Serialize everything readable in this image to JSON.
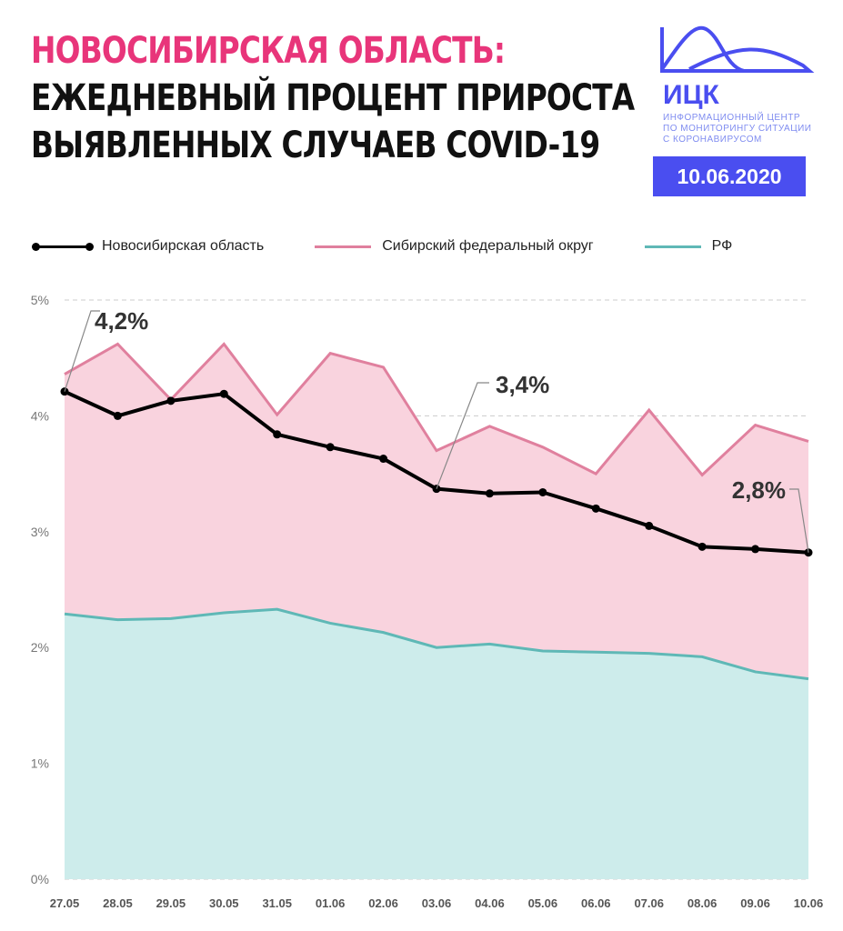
{
  "header": {
    "title_line1": "НОВОСИБИРСКАЯ ОБЛАСТЬ:",
    "title_line2": "ЕЖЕДНЕВНЫЙ ПРОЦЕНТ ПРИРОСТА",
    "title_line3": "ВЫЯВЛЕННЫХ СЛУЧАЕВ COVID-19",
    "logo_name": "ИЦК",
    "logo_sub1": "ИНФОРМАЦИОННЫЙ ЦЕНТР",
    "logo_sub2": "ПО МОНИТОРИНГУ СИТУАЦИИ",
    "logo_sub3": "С КОРОНАВИРУСОМ",
    "date": "10.06.2020"
  },
  "colors": {
    "title": "#e8357a",
    "brand": "#4a4ef0",
    "nso": "#000000",
    "sfo_line": "#e0809e",
    "sfo_fill": "#f9d3de",
    "rf_line": "#5fb8b6",
    "rf_fill": "#cdeceb"
  },
  "chart_data": {
    "type": "area",
    "categories": [
      "27.05",
      "28.05",
      "29.05",
      "30.05",
      "31.05",
      "01.06",
      "02.06",
      "03.06",
      "04.06",
      "05.06",
      "06.06",
      "07.06",
      "08.06",
      "09.06",
      "10.06"
    ],
    "ylim": [
      0,
      5
    ],
    "yticks": [
      "0%",
      "1%",
      "2%",
      "3%",
      "4%",
      "5%"
    ],
    "grid": true,
    "legend_position": "top",
    "series": [
      {
        "name": "Новосибирская область",
        "type": "line-markers",
        "values": [
          4.21,
          4.0,
          4.13,
          4.19,
          3.84,
          3.73,
          3.63,
          3.37,
          3.33,
          3.34,
          3.2,
          3.05,
          2.87,
          2.85,
          2.82
        ]
      },
      {
        "name": "Сибирский федеральный округ",
        "type": "area",
        "values": [
          4.36,
          4.62,
          4.14,
          4.62,
          4.01,
          4.54,
          4.42,
          3.7,
          3.91,
          3.73,
          3.5,
          4.05,
          3.49,
          3.92,
          3.78
        ]
      },
      {
        "name": "РФ",
        "type": "area",
        "values": [
          2.29,
          2.24,
          2.25,
          2.3,
          2.33,
          2.21,
          2.13,
          2.0,
          2.03,
          1.97,
          1.96,
          1.95,
          1.92,
          1.79,
          1.73
        ]
      }
    ],
    "annotations": [
      {
        "index": 0,
        "label": "4,2%"
      },
      {
        "index": 7,
        "label": "3,4%"
      },
      {
        "index": 14,
        "label": "2,8%"
      }
    ]
  }
}
